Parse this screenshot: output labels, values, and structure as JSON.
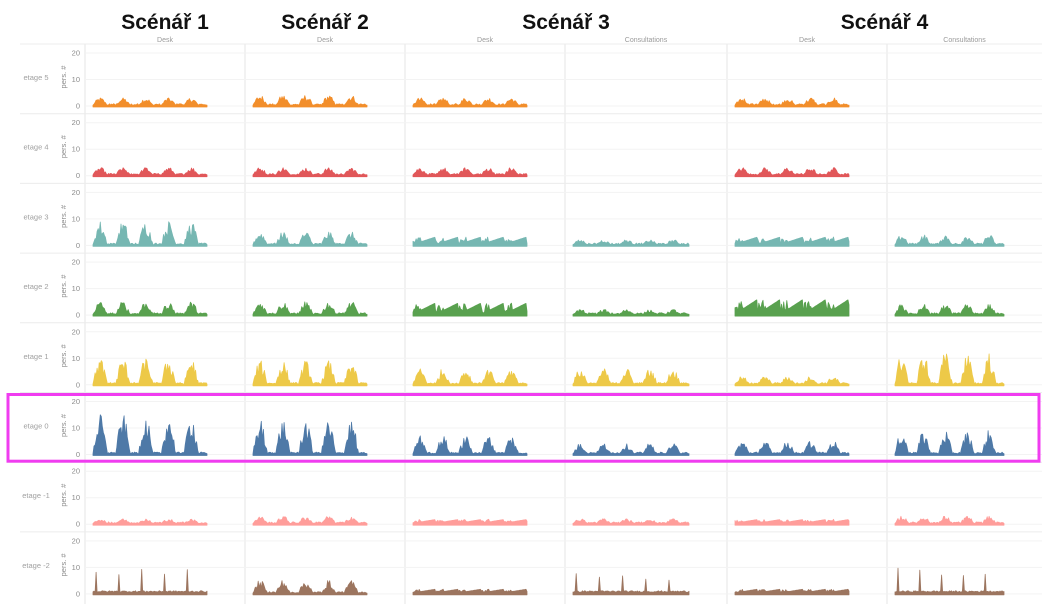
{
  "chart_data": {
    "type": "area",
    "scenarios": [
      {
        "title": "Scénář 1",
        "columns": [
          "Desk"
        ]
      },
      {
        "title": "Scénář 2",
        "columns": [
          "Desk"
        ]
      },
      {
        "title": "Scénář 3",
        "columns": [
          "Desk",
          "Consultations"
        ]
      },
      {
        "title": "Scénář 4",
        "columns": [
          "Desk",
          "Consultations"
        ]
      }
    ],
    "ylabel": "pers. #",
    "ylim": [
      0,
      20
    ],
    "yticks": [
      0,
      10,
      20
    ],
    "highlight_row": "etage 0",
    "highlight_color": "#f03cf0",
    "rows": [
      {
        "label": "etage 5",
        "color": "#f28e2b",
        "cells": [
          {
            "peak": 3,
            "shape": "spiky"
          },
          {
            "peak": 4,
            "shape": "spiky"
          },
          {
            "peak": 3,
            "shape": "spiky"
          },
          null,
          {
            "peak": 3,
            "shape": "spiky"
          },
          null
        ]
      },
      {
        "label": "etage 4",
        "color": "#e15759",
        "cells": [
          {
            "peak": 3,
            "shape": "spiky"
          },
          {
            "peak": 3,
            "shape": "spiky"
          },
          {
            "peak": 3,
            "shape": "spiky"
          },
          null,
          {
            "peak": 3,
            "shape": "spiky"
          },
          null
        ]
      },
      {
        "label": "etage 3",
        "color": "#76b7b2",
        "cells": [
          {
            "peak": 9,
            "shape": "spiky"
          },
          {
            "peak": 5,
            "shape": "spiky"
          },
          {
            "peak": 4,
            "shape": "saw"
          },
          {
            "peak": 2,
            "shape": "spiky"
          },
          {
            "peak": 4,
            "shape": "saw"
          },
          {
            "peak": 4,
            "shape": "spiky"
          }
        ]
      },
      {
        "label": "etage 2",
        "color": "#59a14f",
        "cells": [
          {
            "peak": 5,
            "shape": "spiky"
          },
          {
            "peak": 5,
            "shape": "spiky"
          },
          {
            "peak": 6,
            "shape": "saw"
          },
          {
            "peak": 2,
            "shape": "spiky"
          },
          {
            "peak": 8,
            "shape": "saw"
          },
          {
            "peak": 4,
            "shape": "spiky"
          }
        ]
      },
      {
        "label": "etage 1",
        "color": "#edc948",
        "cells": [
          {
            "peak": 10,
            "shape": "spiky"
          },
          {
            "peak": 9,
            "shape": "spiky"
          },
          {
            "peak": 6,
            "shape": "spiky"
          },
          {
            "peak": 6,
            "shape": "spiky"
          },
          {
            "peak": 3,
            "shape": "spiky"
          },
          {
            "peak": 12,
            "shape": "spiky"
          }
        ]
      },
      {
        "label": "etage 0",
        "color": "#4e79a7",
        "cells": [
          {
            "peak": 15,
            "shape": "spiky"
          },
          {
            "peak": 13,
            "shape": "spiky"
          },
          {
            "peak": 7,
            "shape": "spiky"
          },
          {
            "peak": 4,
            "shape": "spiky"
          },
          {
            "peak": 5,
            "shape": "spiky"
          },
          {
            "peak": 9,
            "shape": "spiky"
          }
        ]
      },
      {
        "label": "etage -1",
        "color": "#ff9d9a",
        "cells": [
          {
            "peak": 2,
            "shape": "spiky"
          },
          {
            "peak": 3,
            "shape": "spiky"
          },
          {
            "peak": 2,
            "shape": "saw"
          },
          {
            "peak": 2,
            "shape": "spiky"
          },
          {
            "peak": 2,
            "shape": "saw"
          },
          {
            "peak": 3,
            "shape": "spiky"
          }
        ]
      },
      {
        "label": "etage -2",
        "color": "#9c755f",
        "cells": [
          {
            "peak": 10,
            "shape": "spike"
          },
          {
            "peak": 5,
            "shape": "spiky"
          },
          {
            "peak": 2,
            "shape": "saw"
          },
          {
            "peak": 8,
            "shape": "spike"
          },
          {
            "peak": 2,
            "shape": "saw"
          },
          {
            "peak": 10,
            "shape": "spike"
          }
        ]
      }
    ]
  }
}
